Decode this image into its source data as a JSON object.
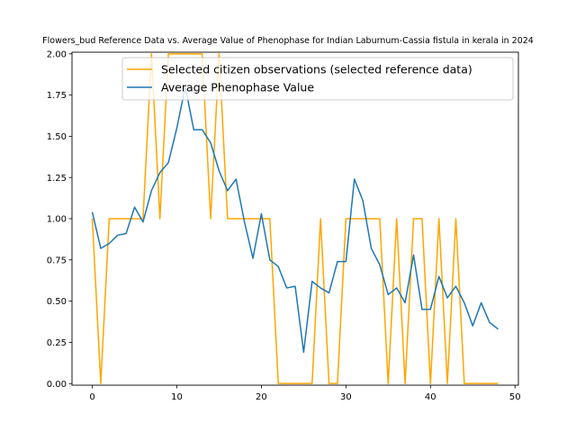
{
  "chart_data": {
    "type": "line",
    "title": "Flowers_bud Reference Data vs. Average Value of Phenophase for Indian Laburnum-Cassia fistula in kerala in 2024",
    "xlabel": "",
    "ylabel": "",
    "xlim": [
      -2.4,
      50.4
    ],
    "ylim": [
      -0.01,
      2.01
    ],
    "xticks": [
      0,
      10,
      20,
      30,
      40,
      50
    ],
    "xtick_labels": [
      "0",
      "10",
      "20",
      "30",
      "40",
      "50"
    ],
    "yticks": [
      0.0,
      0.25,
      0.5,
      0.75,
      1.0,
      1.25,
      1.5,
      1.75,
      2.0
    ],
    "ytick_labels": [
      "0.00",
      "0.25",
      "0.50",
      "0.75",
      "1.00",
      "1.25",
      "1.50",
      "1.75",
      "2.00"
    ],
    "grid": false,
    "legend_position": "top-right",
    "series": [
      {
        "name": "Selected citizen observations (selected reference data)",
        "color": "#ffa500",
        "x": [
          0,
          1,
          2,
          3,
          4,
          5,
          6,
          7,
          8,
          9,
          10,
          11,
          12,
          13,
          14,
          15,
          16,
          17,
          18,
          19,
          20,
          21,
          22,
          23,
          24,
          25,
          26,
          27,
          28,
          29,
          30,
          31,
          32,
          33,
          34,
          35,
          36,
          37,
          38,
          39,
          40,
          41,
          42,
          43,
          44,
          45,
          46,
          47,
          48
        ],
        "y": [
          1,
          0,
          1,
          1,
          1,
          1,
          1,
          2,
          1,
          2,
          2,
          2,
          2,
          2,
          1,
          2,
          1,
          1,
          1,
          1,
          1,
          1,
          0,
          0,
          0,
          0,
          0,
          1,
          0,
          0,
          1,
          1,
          1,
          1,
          1,
          0,
          1,
          0,
          1,
          1,
          0,
          1,
          0,
          1,
          0,
          0,
          0,
          0,
          0
        ]
      },
      {
        "name": "Average Phenophase Value",
        "color": "#1f77b4",
        "x": [
          0,
          1,
          2,
          3,
          4,
          5,
          6,
          7,
          8,
          9,
          10,
          11,
          12,
          13,
          14,
          15,
          16,
          17,
          18,
          19,
          20,
          21,
          22,
          23,
          24,
          25,
          26,
          27,
          28,
          29,
          30,
          31,
          32,
          33,
          34,
          35,
          36,
          37,
          38,
          39,
          40,
          41,
          42,
          43,
          44,
          45,
          46,
          47,
          48
        ],
        "y": [
          1.04,
          0.82,
          0.85,
          0.9,
          0.91,
          1.07,
          0.98,
          1.17,
          1.28,
          1.34,
          1.55,
          1.8,
          1.54,
          1.54,
          1.46,
          1.29,
          1.17,
          1.24,
          0.98,
          0.76,
          1.03,
          0.75,
          0.71,
          0.58,
          0.59,
          0.19,
          0.62,
          0.58,
          0.55,
          0.74,
          0.74,
          1.24,
          1.11,
          0.82,
          0.72,
          0.54,
          0.58,
          0.49,
          0.78,
          0.45,
          0.45,
          0.65,
          0.52,
          0.59,
          0.49,
          0.35,
          0.49,
          0.37,
          0.33
        ]
      }
    ]
  }
}
